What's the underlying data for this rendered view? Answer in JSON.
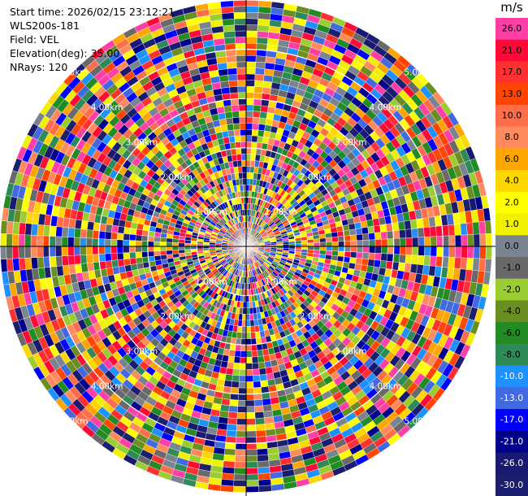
{
  "info": {
    "start_time": "Start time: 2026/02/15 23:12:21",
    "station": "WLS200s-181",
    "field": "Field: VEL",
    "elevation": "Elevation(deg): 35.00",
    "nrays": "NRays: 120"
  },
  "colorbar": {
    "unit": "m/s",
    "levels": [
      {
        "label": "26.0",
        "color": "#ff3fa6"
      },
      {
        "label": "21.0",
        "color": "#ff0a36"
      },
      {
        "label": "17.0",
        "color": "#ff3030"
      },
      {
        "label": "13.0",
        "color": "#ff4500"
      },
      {
        "label": "10.0",
        "color": "#ff6e4a"
      },
      {
        "label": "8.0",
        "color": "#ff8a5c"
      },
      {
        "label": "6.0",
        "color": "#ffa500"
      },
      {
        "label": "4.0",
        "color": "#ffd700"
      },
      {
        "label": "2.0",
        "color": "#ffff00"
      },
      {
        "label": "1.0",
        "color": "#f0f000"
      },
      {
        "label": "0.0",
        "color": "#7a8490"
      },
      {
        "label": "-1.0",
        "color": "#696969"
      },
      {
        "label": "-2.0",
        "color": "#9acd32"
      },
      {
        "label": "-4.0",
        "color": "#6b8e23"
      },
      {
        "label": "-6.0",
        "color": "#228b22"
      },
      {
        "label": "-8.0",
        "color": "#2e8b57"
      },
      {
        "label": "-10.0",
        "color": "#1e90ff"
      },
      {
        "label": "-13.0",
        "color": "#4169e1"
      },
      {
        "label": "-17.0",
        "color": "#0000ff"
      },
      {
        "label": "-21.0",
        "color": "#00008b"
      },
      {
        "label": "-26.0",
        "color": "#191970"
      },
      {
        "label": "-30.0",
        "color": "#1b1f6e"
      }
    ]
  },
  "chart_data": {
    "type": "ppi",
    "field": "VEL",
    "nrays": 120,
    "elevation_deg": 35.0,
    "range_rings_km": [
      1.0,
      2.0,
      3.0,
      4.0,
      5.0
    ],
    "range_ring_labels": [
      "1.00km",
      "2.00km",
      "3.00km",
      "4.00km",
      "5.00km"
    ],
    "max_range_km": 5.0,
    "grid": true,
    "colormap_unit": "m/s"
  }
}
